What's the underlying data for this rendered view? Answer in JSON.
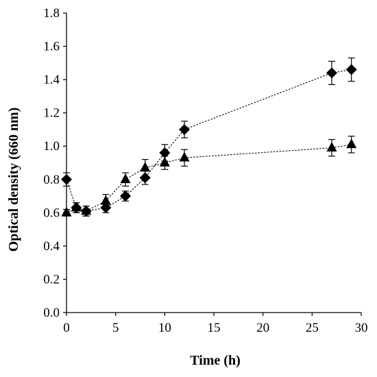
{
  "chart_data": {
    "type": "scatter",
    "title": "",
    "xlabel": "Time (h)",
    "ylabel": "Optical density (660 nm)",
    "xlim": [
      0,
      30
    ],
    "ylim": [
      0,
      1.8
    ],
    "x_ticks": [
      "0",
      "5",
      "10",
      "15",
      "20",
      "25",
      "30"
    ],
    "y_ticks": [
      "0.0",
      "0.2",
      "0.4",
      "0.6",
      "0.8",
      "1.0",
      "1.2",
      "1.4",
      "1.6",
      "1.8"
    ],
    "grid": false,
    "legend": "none",
    "line_style": "dotted",
    "series": [
      {
        "marker": "diamond",
        "color": "#000000",
        "x": [
          0,
          1,
          2,
          4,
          6,
          8,
          10,
          12,
          27,
          29
        ],
        "y": [
          0.8,
          0.63,
          0.61,
          0.63,
          0.7,
          0.81,
          0.96,
          1.1,
          1.44,
          1.46
        ],
        "error": [
          0.04,
          0.03,
          0.03,
          0.03,
          0.03,
          0.04,
          0.05,
          0.05,
          0.07,
          0.07
        ]
      },
      {
        "marker": "triangle",
        "color": "#000000",
        "x": [
          0,
          1,
          2,
          4,
          6,
          8,
          10,
          12,
          27,
          29
        ],
        "y": [
          0.6,
          0.63,
          0.61,
          0.67,
          0.8,
          0.87,
          0.9,
          0.93,
          0.99,
          1.01
        ],
        "error": [
          0.02,
          0.03,
          0.03,
          0.04,
          0.04,
          0.05,
          0.04,
          0.05,
          0.05,
          0.05
        ]
      }
    ]
  }
}
